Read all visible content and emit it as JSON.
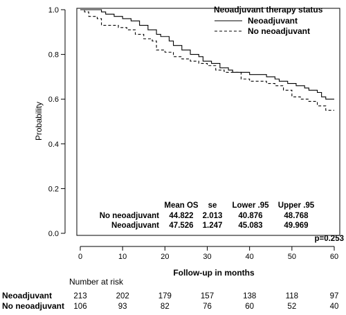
{
  "chart_data": {
    "type": "line",
    "title": "",
    "xlabel": "Follow-up in months",
    "ylabel": "Probability",
    "xlim": [
      0,
      60
    ],
    "ylim": [
      0,
      1
    ],
    "x_ticks": [
      0,
      10,
      20,
      30,
      40,
      50,
      60
    ],
    "y_ticks": [
      "0.0",
      "0.2",
      "0.4",
      "0.6",
      "0.8",
      "1.0"
    ],
    "grid": false,
    "legend": {
      "title": "Neoadjuvant therapy status",
      "position": "top-right",
      "entries": [
        {
          "label": "Neoadjuvant",
          "style": "solid"
        },
        {
          "label": "No neoadjuvant",
          "style": "dashed"
        }
      ]
    },
    "series": [
      {
        "name": "Neoadjuvant",
        "style": "solid",
        "color": "#000000",
        "x": [
          0,
          3,
          5,
          6,
          8,
          10,
          12,
          14,
          16,
          18,
          19,
          21,
          22,
          24,
          26,
          28,
          29,
          31,
          33,
          35,
          36,
          38,
          40,
          42,
          44,
          46,
          47,
          49,
          51,
          53,
          54,
          56,
          57,
          58,
          60
        ],
        "y": [
          1.0,
          1.0,
          0.99,
          0.98,
          0.97,
          0.96,
          0.95,
          0.93,
          0.91,
          0.89,
          0.88,
          0.86,
          0.84,
          0.82,
          0.8,
          0.79,
          0.77,
          0.76,
          0.74,
          0.73,
          0.72,
          0.72,
          0.71,
          0.71,
          0.7,
          0.69,
          0.68,
          0.67,
          0.66,
          0.65,
          0.64,
          0.63,
          0.61,
          0.6,
          0.6
        ]
      },
      {
        "name": "No neoadjuvant",
        "style": "dashed",
        "color": "#000000",
        "x": [
          0,
          1,
          2,
          4,
          5,
          7,
          9,
          11,
          13,
          15,
          17,
          18,
          20,
          22,
          24,
          26,
          28,
          30,
          32,
          34,
          36,
          38,
          40,
          42,
          44,
          46,
          48,
          50,
          52,
          54,
          56,
          58,
          60
        ],
        "y": [
          1.0,
          0.99,
          0.97,
          0.96,
          0.93,
          0.93,
          0.92,
          0.91,
          0.89,
          0.87,
          0.86,
          0.82,
          0.81,
          0.79,
          0.78,
          0.77,
          0.76,
          0.75,
          0.73,
          0.72,
          0.72,
          0.69,
          0.68,
          0.68,
          0.67,
          0.66,
          0.64,
          0.61,
          0.6,
          0.59,
          0.57,
          0.55,
          0.55
        ]
      }
    ],
    "stats_table": {
      "headers": [
        "Mean OS",
        "se",
        "Lower .95",
        "Upper .95"
      ],
      "rows": [
        {
          "group": "No neoadjuvant",
          "values": [
            "44.822",
            "2.013",
            "40.876",
            "48.768"
          ]
        },
        {
          "group": "Neoadjuvant",
          "values": [
            "47.526",
            "1.247",
            "45.083",
            "49.969"
          ]
        }
      ]
    },
    "p_value": "p=0.253",
    "risk_table": {
      "title": "Number at risk",
      "times": [
        0,
        10,
        20,
        30,
        40,
        50,
        60
      ],
      "rows": [
        {
          "group": "Neoadjuvant",
          "values": [
            "213",
            "202",
            "179",
            "157",
            "138",
            "118",
            "97"
          ]
        },
        {
          "group": "No neoadjuvant",
          "values": [
            "106",
            "93",
            "82",
            "76",
            "60",
            "52",
            "40"
          ]
        }
      ]
    }
  }
}
